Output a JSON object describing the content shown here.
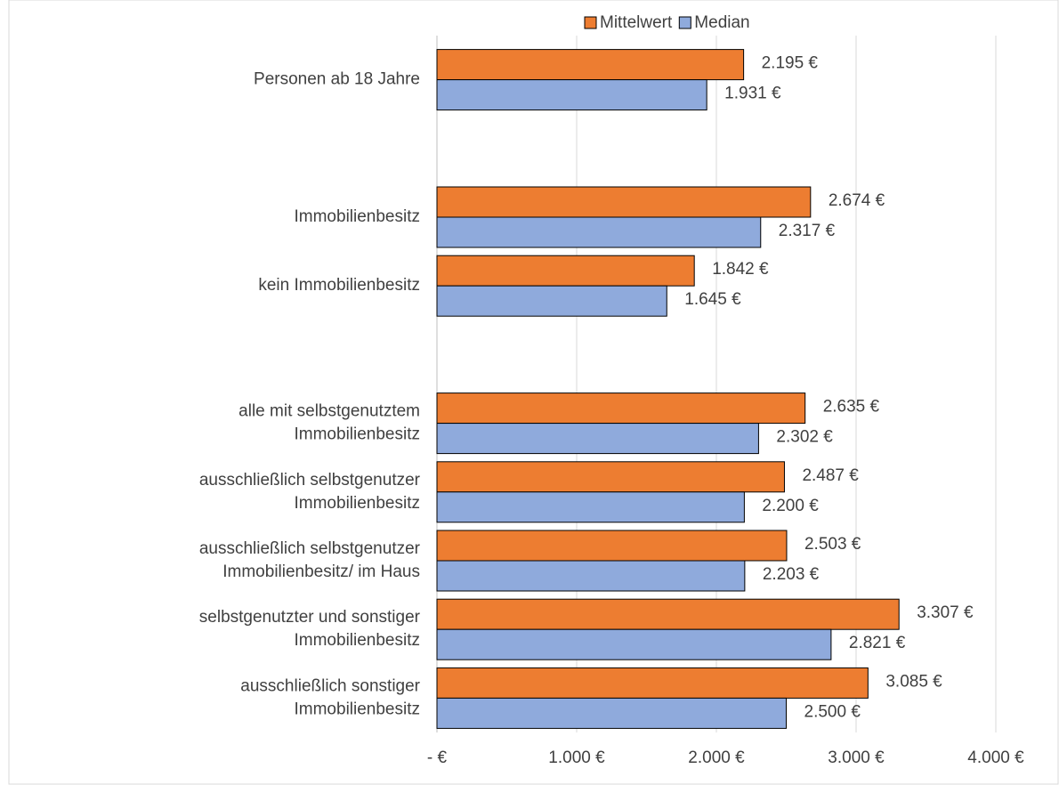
{
  "chart_data": {
    "type": "bar",
    "orientation": "horizontal",
    "categories": [
      "Personen ab 18 Jahre",
      null,
      "Immobilienbesitz",
      "kein Immobilienbesitz",
      null,
      [
        "alle mit selbstgenutztem",
        "Immobilienbesitz"
      ],
      [
        "ausschließlich selbstgenutzer",
        "Immobilienbesitz"
      ],
      [
        "ausschließlich selbstgenutzer",
        "Immobilienbesitz/ im  Haus"
      ],
      [
        "selbstgenutzter und sonstiger",
        "Immobilienbesitz"
      ],
      [
        "ausschließlich sonstiger",
        "Immobilienbesitz"
      ]
    ],
    "series": [
      {
        "name": "Mittelwert",
        "color": "#ed7d31",
        "values": [
          2195,
          null,
          2674,
          1842,
          null,
          2635,
          2487,
          2503,
          3307,
          3085
        ],
        "value_labels": [
          "2.195 €",
          null,
          "2.674 €",
          "1.842 €",
          null,
          "2.635 €",
          "2.487 €",
          "2.503 €",
          "3.307 €",
          "3.085 €"
        ]
      },
      {
        "name": "Median",
        "color": "#8faadc",
        "values": [
          1931,
          null,
          2317,
          1645,
          null,
          2302,
          2200,
          2203,
          2821,
          2500
        ],
        "value_labels": [
          "1.931 €",
          null,
          "2.317 €",
          "1.645 €",
          null,
          "2.302 €",
          "2.200 €",
          "2.203 €",
          "2.821 €",
          "2.500 €"
        ]
      }
    ],
    "xlim": [
      0,
      4000
    ],
    "xticks": [
      {
        "value": 0,
        "label": "-  €"
      },
      {
        "value": 1000,
        "label": "1.000 €"
      },
      {
        "value": 2000,
        "label": "2.000 €"
      },
      {
        "value": 3000,
        "label": "3.000 €"
      },
      {
        "value": 4000,
        "label": "4.000 €"
      }
    ],
    "grid": true,
    "legend": "top"
  }
}
